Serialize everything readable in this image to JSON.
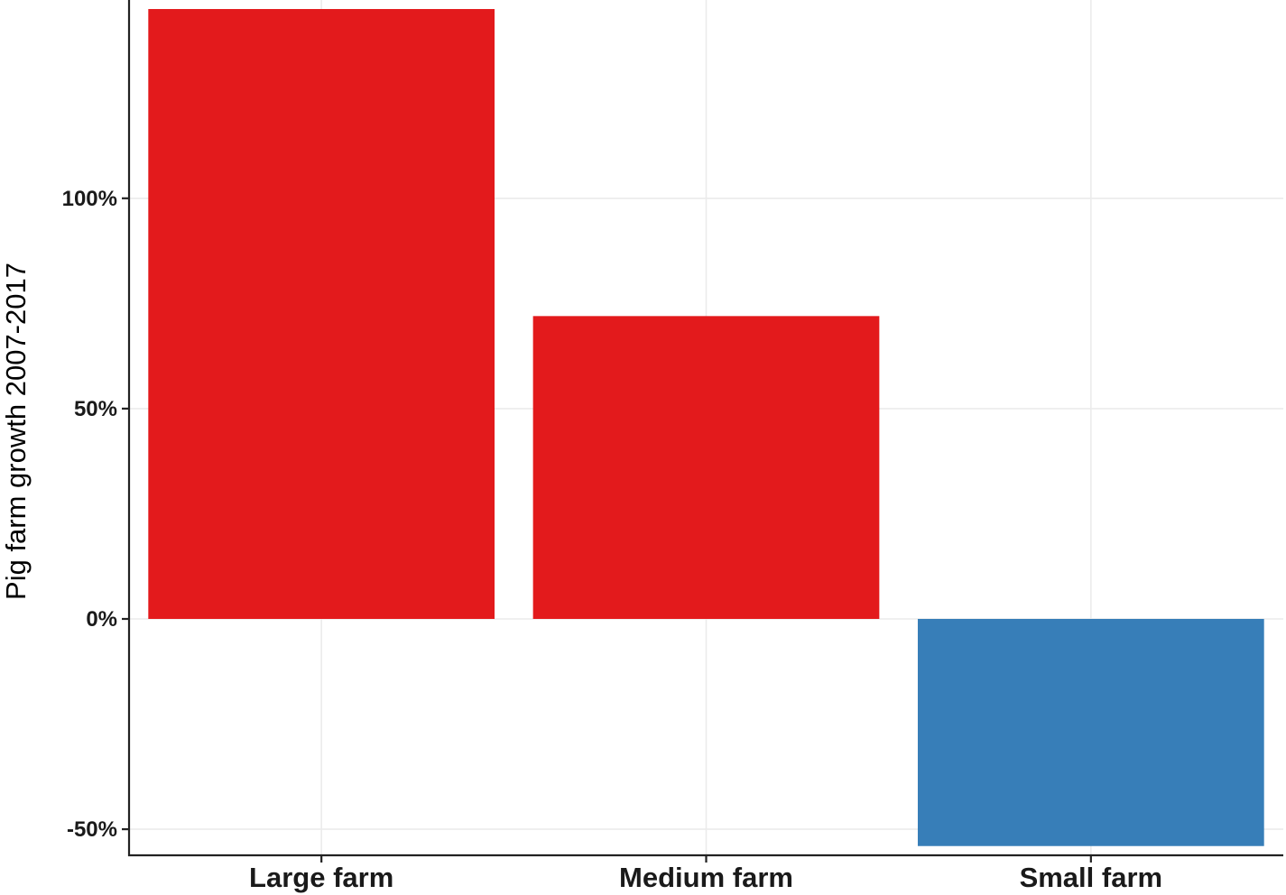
{
  "chart_data": {
    "type": "bar",
    "title": "",
    "xlabel": "",
    "ylabel": "Pig farm growth 2007-2017",
    "categories": [
      "Large farm",
      "Medium farm",
      "Small farm"
    ],
    "values": [
      145,
      72,
      -54
    ],
    "value_unit": "%",
    "colors": [
      "#e31a1c",
      "#e31a1c",
      "#377eb8"
    ],
    "ylim": [
      -56,
      146
    ],
    "yticks": [
      -50,
      0,
      50,
      100
    ],
    "ytick_labels": [
      "-50%",
      "0%",
      "50%",
      "100%"
    ],
    "grid": true,
    "legend": "none"
  }
}
